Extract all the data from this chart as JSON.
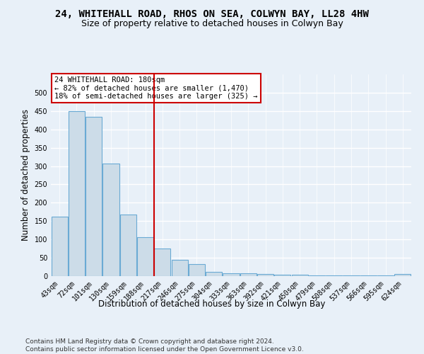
{
  "title": "24, WHITEHALL ROAD, RHOS ON SEA, COLWYN BAY, LL28 4HW",
  "subtitle": "Size of property relative to detached houses in Colwyn Bay",
  "xlabel": "Distribution of detached houses by size in Colwyn Bay",
  "ylabel": "Number of detached properties",
  "categories": [
    "43sqm",
    "72sqm",
    "101sqm",
    "130sqm",
    "159sqm",
    "188sqm",
    "217sqm",
    "246sqm",
    "275sqm",
    "304sqm",
    "333sqm",
    "363sqm",
    "392sqm",
    "421sqm",
    "450sqm",
    "479sqm",
    "508sqm",
    "537sqm",
    "566sqm",
    "595sqm",
    "624sqm"
  ],
  "values": [
    163,
    450,
    435,
    307,
    168,
    107,
    75,
    45,
    33,
    11,
    8,
    8,
    5,
    4,
    4,
    2,
    2,
    2,
    2,
    2,
    5
  ],
  "bar_color": "#ccdce8",
  "bar_edge_color": "#6aaad4",
  "background_color": "#e8f0f8",
  "grid_color": "#ffffff",
  "vline_x_index": 5,
  "vline_color": "#cc0000",
  "annotation_text": "24 WHITEHALL ROAD: 180sqm\n← 82% of detached houses are smaller (1,470)\n18% of semi-detached houses are larger (325) →",
  "annotation_box_color": "#ffffff",
  "annotation_box_edge": "#cc0000",
  "footer": "Contains HM Land Registry data © Crown copyright and database right 2024.\nContains public sector information licensed under the Open Government Licence v3.0.",
  "ylim": [
    0,
    550
  ],
  "yticks": [
    0,
    50,
    100,
    150,
    200,
    250,
    300,
    350,
    400,
    450,
    500
  ],
  "title_fontsize": 10,
  "subtitle_fontsize": 9,
  "xlabel_fontsize": 8.5,
  "ylabel_fontsize": 8.5,
  "tick_fontsize": 7,
  "footer_fontsize": 6.5,
  "annotation_fontsize": 7.5
}
